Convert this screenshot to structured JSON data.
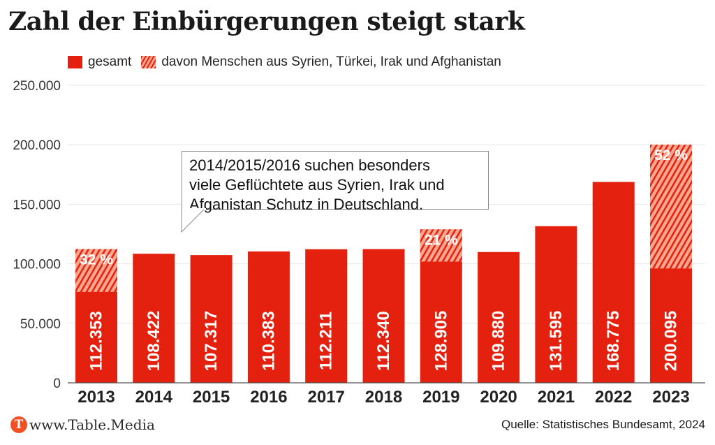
{
  "title": "Zahl der Einbürgerungen steigt stark",
  "legend": [
    {
      "label": "gesamt",
      "style": "solid"
    },
    {
      "label": "davon Menschen aus Syrien, Türkei, Irak und Afghanistan",
      "style": "hatched"
    }
  ],
  "annotation": {
    "lines": [
      "2014/2015/2016 suchen besonders",
      "viele Geflüchtete aus Syrien, Irak und",
      "Afganistan Schutz in Deutschland."
    ]
  },
  "footer": {
    "logo_letter": "T",
    "site": "www.Table.Media",
    "source": "Quelle: Statistisches Bundesamt, 2024"
  },
  "colors": {
    "bar": "#e4210f",
    "hatch_light": "#fba68f",
    "axis": "#555555",
    "grid": "#e6e6e6"
  },
  "chart_data": {
    "type": "bar",
    "title": "Zahl der Einbürgerungen steigt stark",
    "xlabel": "",
    "ylabel": "",
    "categories": [
      "2013",
      "2014",
      "2015",
      "2016",
      "2017",
      "2018",
      "2019",
      "2020",
      "2021",
      "2022",
      "2023"
    ],
    "series": [
      {
        "name": "gesamt",
        "values": [
          112353,
          108422,
          107317,
          110383,
          112211,
          112340,
          128905,
          109880,
          131595,
          168775,
          200095
        ]
      },
      {
        "name": "davon Menschen aus Syrien, Türkei, Irak und Afghanistan",
        "share_percent": [
          32,
          null,
          null,
          null,
          null,
          null,
          21,
          null,
          null,
          null,
          52
        ]
      }
    ],
    "value_labels": [
      "112.353",
      "108.422",
      "107.317",
      "110.383",
      "112.211",
      "112.340",
      "128.905",
      "109.880",
      "131.595",
      "168.775",
      "200.095"
    ],
    "share_labels": [
      "32 %",
      null,
      null,
      null,
      null,
      null,
      "21 %",
      null,
      null,
      null,
      "52 %"
    ],
    "ylim": [
      0,
      250000
    ],
    "yticks": [
      0,
      50000,
      100000,
      150000,
      200000,
      250000
    ],
    "ytick_labels": [
      "0",
      "50.000",
      "100.000",
      "150.000",
      "200.000",
      "250.000"
    ],
    "grid": true,
    "legend_position": "top-left"
  }
}
